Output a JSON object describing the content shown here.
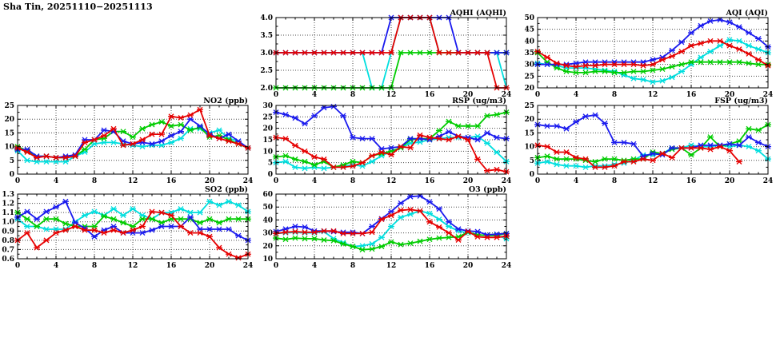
{
  "header": {
    "title": "Sha Tin, 20251110−20251113"
  },
  "chart_data": [
    {
      "id": "aqhi",
      "type": "line",
      "title": "AQHI (AQHI)",
      "xlim": [
        0,
        24
      ],
      "xticks": [
        0,
        4,
        8,
        12,
        16,
        20,
        24
      ],
      "x_minor_step": 1,
      "grid": true,
      "ylim": [
        2,
        4
      ],
      "yticks": [
        2.0,
        2.5,
        3.0,
        3.5,
        4.0
      ],
      "ytick_labels": [
        "2.0",
        "2.5",
        "3.0",
        "3.5",
        "4.0"
      ],
      "series": [
        {
          "name": "cyan",
          "color": "#00dede",
          "values": [
            3,
            3,
            3,
            3,
            3,
            3,
            3,
            3,
            3,
            3,
            2,
            2,
            3,
            4,
            4,
            4,
            4,
            3,
            3,
            3,
            3,
            3,
            3,
            3,
            2
          ]
        },
        {
          "name": "green",
          "color": "#00cc00",
          "values": [
            2,
            2,
            2,
            2,
            2,
            2,
            2,
            2,
            2,
            2,
            2,
            2,
            2,
            3,
            3,
            3,
            3,
            3,
            3,
            3,
            3,
            3,
            3,
            3,
            3
          ]
        },
        {
          "name": "blue",
          "color": "#1a1aee",
          "values": [
            3,
            3,
            3,
            3,
            3,
            3,
            3,
            3,
            3,
            3,
            3,
            3,
            4,
            4,
            4,
            4,
            4,
            4,
            4,
            3,
            3,
            3,
            3,
            3,
            3
          ]
        },
        {
          "name": "red",
          "color": "#e60000",
          "values": [
            3,
            3,
            3,
            3,
            3,
            3,
            3,
            3,
            3,
            3,
            3,
            3,
            3,
            4,
            4,
            4,
            4,
            3,
            3,
            3,
            3,
            3,
            3,
            2,
            2
          ]
        }
      ]
    },
    {
      "id": "aqi",
      "type": "line",
      "title": "AQI (AQI)",
      "xlim": [
        0,
        24
      ],
      "xticks": [
        0,
        4,
        8,
        12,
        16,
        20,
        24
      ],
      "x_minor_step": 1,
      "grid": true,
      "ylim": [
        20,
        50
      ],
      "yticks": [
        20,
        25,
        30,
        35,
        40,
        45,
        50
      ],
      "ytick_labels": [
        "20",
        "25",
        "30",
        "35",
        "40",
        "45",
        "50"
      ],
      "series": [
        {
          "name": "cyan",
          "color": "#00dede",
          "values": [
            30.5,
            30,
            29.5,
            28.5,
            28.5,
            28.5,
            28,
            27.5,
            27,
            25.5,
            24,
            23.5,
            22.5,
            23,
            24.5,
            27,
            30,
            33,
            35.5,
            38,
            40.5,
            40,
            38,
            36.5,
            35
          ]
        },
        {
          "name": "green",
          "color": "#00cc00",
          "values": [
            35,
            31,
            28.5,
            27,
            26.5,
            26.5,
            27,
            27,
            26.5,
            26.5,
            27,
            27,
            27.5,
            28,
            29,
            30,
            31,
            31,
            31,
            31,
            31,
            31,
            30.5,
            30,
            30
          ]
        },
        {
          "name": "blue",
          "color": "#1a1aee",
          "values": [
            30,
            30,
            30,
            30,
            30.5,
            31,
            31,
            31,
            31,
            31,
            31,
            31,
            32,
            33,
            36,
            39.5,
            43.5,
            46.5,
            48.5,
            49,
            48,
            46,
            43.5,
            41,
            37.5
          ]
        },
        {
          "name": "red",
          "color": "#e60000",
          "values": [
            35.5,
            33,
            30.5,
            29.5,
            29,
            29.5,
            29.5,
            30,
            30,
            30,
            30,
            29.5,
            30,
            32,
            33.5,
            35.5,
            38,
            39,
            40,
            40,
            38,
            36.5,
            34.5,
            32,
            29.5
          ]
        }
      ]
    },
    {
      "id": "no2",
      "type": "line",
      "title": "NO2 (ppb)",
      "xlim": [
        0,
        24
      ],
      "xticks": [
        0,
        4,
        8,
        12,
        16,
        20,
        24
      ],
      "x_minor_step": 1,
      "grid": true,
      "ylim": [
        0,
        25
      ],
      "yticks": [
        0,
        5,
        10,
        15,
        20,
        25
      ],
      "ytick_labels": [
        "0",
        "5",
        "10",
        "15",
        "20",
        "25"
      ],
      "series": [
        {
          "name": "cyan",
          "color": "#00dede",
          "values": [
            8.5,
            5,
            4.5,
            4.5,
            4.5,
            4.5,
            6.5,
            8,
            11,
            11.5,
            11.5,
            11,
            10.5,
            10,
            10.5,
            10.5,
            11.5,
            13,
            16.5,
            16.5,
            15,
            16,
            13,
            12,
            9.5
          ]
        },
        {
          "name": "green",
          "color": "#00cc00",
          "values": [
            10,
            8.5,
            6.5,
            6.5,
            6,
            6,
            6.5,
            9,
            12.5,
            13,
            15.5,
            15.5,
            13.5,
            16.5,
            18,
            19,
            17.5,
            18,
            16,
            17,
            13.5,
            14,
            12.5,
            11,
            9.5
          ]
        },
        {
          "name": "blue",
          "color": "#1a1aee",
          "values": [
            9,
            9,
            6.5,
            6.5,
            6,
            6.5,
            7,
            12.5,
            12.5,
            16,
            15.5,
            12,
            11,
            11.5,
            11,
            12,
            14,
            15.5,
            20,
            17.5,
            14.5,
            13,
            14.5,
            12,
            9.5
          ]
        },
        {
          "name": "red",
          "color": "#e60000",
          "values": [
            9.5,
            8,
            6,
            6.5,
            6,
            6,
            6.5,
            11.5,
            12.5,
            14,
            16.5,
            10.5,
            11,
            12.5,
            14.5,
            14.5,
            21,
            20.5,
            21.5,
            23.5,
            14,
            13,
            12,
            11,
            9.5
          ]
        }
      ]
    },
    {
      "id": "rsp",
      "type": "line",
      "title": "RSP (ug/m3)",
      "xlim": [
        0,
        24
      ],
      "xticks": [
        0,
        4,
        8,
        12,
        16,
        20,
        24
      ],
      "x_minor_step": 1,
      "grid": true,
      "ylim": [
        0,
        30
      ],
      "yticks": [
        0,
        5,
        10,
        15,
        20,
        25,
        30
      ],
      "ytick_labels": [
        "0",
        "5",
        "10",
        "15",
        "20",
        "25",
        "30"
      ],
      "series": [
        {
          "name": "cyan",
          "color": "#00dede",
          "values": [
            5,
            5.5,
            3,
            2.5,
            3,
            2.5,
            3,
            3.5,
            4,
            3.5,
            5.5,
            8,
            10,
            11.5,
            13.5,
            14,
            15,
            15.5,
            16,
            16,
            16,
            16.5,
            13.5,
            9.5,
            5.5
          ]
        },
        {
          "name": "green",
          "color": "#00cc00",
          "values": [
            7.5,
            8,
            6.5,
            5.5,
            4,
            5.5,
            3,
            4,
            5.5,
            5,
            8,
            9,
            10,
            11.5,
            15,
            15.5,
            15.5,
            19,
            23,
            21,
            21,
            21,
            25.5,
            26,
            27
          ]
        },
        {
          "name": "blue",
          "color": "#1a1aee",
          "values": [
            27,
            26,
            24.5,
            22,
            25.5,
            29,
            29.5,
            25.5,
            16,
            15.5,
            15.5,
            11,
            11.5,
            12,
            15.5,
            15.5,
            15,
            16.5,
            18.5,
            16.5,
            16,
            15,
            18,
            16,
            15.5
          ]
        },
        {
          "name": "red",
          "color": "#e60000",
          "values": [
            16,
            15.5,
            12.5,
            10,
            7.5,
            6.5,
            3,
            3,
            3.5,
            5,
            8,
            9.5,
            8.5,
            12,
            11.5,
            17,
            16,
            15.5,
            15,
            16.5,
            15,
            6.5,
            1.5,
            2,
            1
          ]
        }
      ]
    },
    {
      "id": "fsp",
      "type": "line",
      "title": "FSP (ug/m3)",
      "xlim": [
        0,
        24
      ],
      "xticks": [
        0,
        4,
        8,
        12,
        16,
        20,
        24
      ],
      "x_minor_step": 1,
      "grid": true,
      "ylim": [
        0,
        25
      ],
      "yticks": [
        0,
        5,
        10,
        15,
        20,
        25
      ],
      "ytick_labels": [
        "0",
        "5",
        "10",
        "15",
        "20",
        "25"
      ],
      "series": [
        {
          "name": "cyan",
          "color": "#00dede",
          "values": [
            4,
            4.5,
            3.5,
            3,
            3,
            2.5,
            3,
            3,
            3.5,
            4,
            5,
            7,
            7,
            7.5,
            9.5,
            9.5,
            10.5,
            10,
            10,
            10.5,
            10,
            10.5,
            10,
            8.5,
            5.5
          ]
        },
        {
          "name": "green",
          "color": "#00cc00",
          "values": [
            6,
            6.5,
            5.5,
            5.5,
            5.5,
            5,
            4.5,
            5.5,
            5.5,
            5,
            5.5,
            5.5,
            8,
            7.5,
            9,
            9.5,
            7,
            9.5,
            13.5,
            10,
            11,
            12,
            16.5,
            16,
            18
          ]
        },
        {
          "name": "blue",
          "color": "#1a1aee",
          "values": [
            18,
            17.5,
            17.5,
            16.5,
            19,
            21,
            21.5,
            18.5,
            11.5,
            11.5,
            11,
            6.5,
            7.5,
            7,
            9.5,
            9.5,
            9.5,
            10.5,
            10.5,
            10.5,
            11,
            10.5,
            13.5,
            11.5,
            10
          ]
        },
        {
          "name": "red",
          "color": "#e60000",
          "values": [
            10.5,
            10,
            8,
            8,
            6,
            5.5,
            2.5,
            2.5,
            3,
            4.5,
            4.5,
            5.5,
            5,
            7.5,
            6,
            9.5,
            9.5,
            9.5,
            9,
            10,
            8.5,
            4.5
          ]
        }
      ]
    },
    {
      "id": "so2",
      "type": "line",
      "title": "SO2 (ppb)",
      "xlim": [
        0,
        24
      ],
      "xticks": [
        0,
        4,
        8,
        12,
        16,
        20,
        24
      ],
      "x_minor_step": 1,
      "grid": true,
      "ylim": [
        0.6,
        1.3
      ],
      "yticks": [
        0.6,
        0.7,
        0.8,
        0.9,
        1.0,
        1.1,
        1.2,
        1.3
      ],
      "ytick_labels": [
        "0.6",
        "0.7",
        "0.8",
        "0.9",
        "1.0",
        "1.1",
        "1.2",
        "1.3"
      ],
      "series": [
        {
          "name": "cyan",
          "color": "#00dede",
          "values": [
            1.03,
            0.95,
            0.95,
            0.92,
            0.92,
            0.92,
            1.0,
            1.07,
            1.11,
            1.07,
            1.14,
            1.07,
            1.14,
            1.07,
            1.03,
            1.1,
            1.1,
            1.14,
            1.1,
            1.1,
            1.22,
            1.18,
            1.22,
            1.18,
            1.11
          ]
        },
        {
          "name": "green",
          "color": "#00cc00",
          "values": [
            1.1,
            1.03,
            0.95,
            1.03,
            1.03,
            0.98,
            0.95,
            0.95,
            0.95,
            1.06,
            1.03,
            0.99,
            0.95,
            1.03,
            1.03,
            0.99,
            1.03,
            1.03,
            1.03,
            0.99,
            1.03,
            0.99,
            1.03,
            1.03,
            1.03
          ]
        },
        {
          "name": "blue",
          "color": "#1a1aee",
          "values": [
            1.05,
            1.11,
            1.03,
            1.11,
            1.16,
            1.22,
            0.99,
            0.93,
            0.84,
            0.91,
            0.95,
            0.88,
            0.88,
            0.88,
            0.91,
            0.95,
            0.95,
            0.95,
            1.05,
            0.92,
            0.92,
            0.92,
            0.92,
            0.85,
            0.8
          ]
        },
        {
          "name": "red",
          "color": "#e60000",
          "values": [
            0.8,
            0.88,
            0.72,
            0.8,
            0.88,
            0.91,
            0.95,
            0.91,
            0.91,
            0.88,
            0.91,
            0.88,
            0.91,
            0.95,
            1.11,
            1.1,
            1.07,
            0.95,
            0.88,
            0.88,
            0.84,
            0.72,
            0.65,
            0.61,
            0.65
          ]
        }
      ]
    },
    {
      "id": "o3",
      "type": "line",
      "title": "O3 (ppb)",
      "xlim": [
        0,
        24
      ],
      "xticks": [
        0,
        4,
        8,
        12,
        16,
        20,
        24
      ],
      "x_minor_step": 1,
      "grid": true,
      "ylim": [
        10,
        60
      ],
      "yticks": [
        10,
        20,
        30,
        40,
        50,
        60
      ],
      "ytick_labels": [
        "10",
        "20",
        "30",
        "40",
        "50",
        "60"
      ],
      "series": [
        {
          "name": "cyan",
          "color": "#00dede",
          "values": [
            29.5,
            30,
            30.5,
            30,
            30,
            31,
            25.5,
            22.5,
            19.5,
            20,
            21.5,
            26.5,
            35,
            42,
            44.5,
            47,
            45,
            40.5,
            35,
            31.5,
            30,
            28.5,
            28,
            28,
            25.5
          ]
        },
        {
          "name": "green",
          "color": "#00cc00",
          "values": [
            26,
            25,
            26,
            25.5,
            25.5,
            24.5,
            24,
            21.5,
            19.5,
            17,
            17.5,
            19.5,
            23,
            21,
            22,
            23.5,
            25,
            26,
            26.5,
            27,
            30.5,
            28.5,
            28,
            28,
            29.5
          ]
        },
        {
          "name": "blue",
          "color": "#1a1aee",
          "values": [
            31,
            33,
            35,
            34.5,
            31.5,
            31.5,
            31,
            30.5,
            30.5,
            29.5,
            35,
            41,
            46.5,
            53,
            58,
            58.5,
            54,
            48.5,
            38.5,
            33,
            31.5,
            31,
            28.5,
            29,
            29.5
          ]
        },
        {
          "name": "red",
          "color": "#e60000",
          "values": [
            29.5,
            30.5,
            31,
            30.5,
            30.5,
            31.5,
            31.5,
            29.5,
            29.5,
            29.5,
            30.5,
            40.5,
            43.5,
            47.5,
            48,
            47,
            38.5,
            34.5,
            30,
            24.5,
            31,
            27,
            26.5,
            26.5,
            27.5
          ]
        }
      ]
    }
  ]
}
